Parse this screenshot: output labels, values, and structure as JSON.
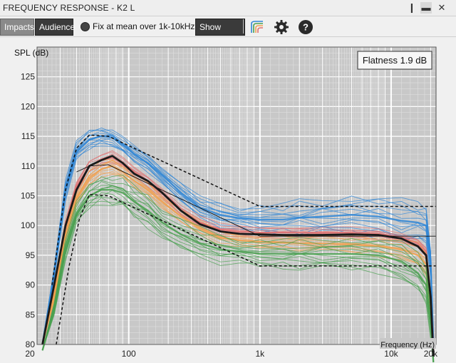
{
  "window": {
    "title": "FREQUENCY RESPONSE - K2 L"
  },
  "toolbar": {
    "impacts_label": "Impacts",
    "audience_label": "Audience",
    "fix_label": "Fix at mean over 1k-10kHz",
    "show_mean_label": "Show mean",
    "icons": [
      "curves-icon",
      "gear-icon",
      "help-icon"
    ]
  },
  "chart_data": {
    "type": "line",
    "xscale": "log",
    "xlim": [
      20,
      22000
    ],
    "ylim": [
      80,
      130
    ],
    "ylabel": "SPL (dB)",
    "xlabel": "Frequency (Hz)",
    "xtick_labels": [
      "20",
      "100",
      "1k",
      "10k",
      "20k"
    ],
    "ytick_labels": [
      "80",
      "85",
      "90",
      "95",
      "100",
      "105",
      "110",
      "115",
      "120",
      "125"
    ],
    "grid": true,
    "background": "#c8c8c8",
    "flatness_label": "Flatness 1.9 dB",
    "mean": {
      "color": "#1a1a1a",
      "x": [
        22,
        27,
        33,
        40,
        50,
        62,
        75,
        90,
        110,
        140,
        180,
        250,
        350,
        500,
        700,
        1000,
        1500,
        2000,
        3000,
        5000,
        8000,
        12000,
        16000,
        18500,
        20000,
        21000
      ],
      "y": [
        80,
        90,
        100,
        106,
        110,
        111,
        111.7,
        110.5,
        108.7,
        107.5,
        105.5,
        102.5,
        100.2,
        99,
        98.6,
        98.5,
        98.4,
        98.4,
        98.4,
        98.5,
        98.4,
        97.8,
        96.5,
        95,
        88,
        78
      ]
    },
    "target_upper": {
      "style": "dashed",
      "x": [
        26,
        33,
        40,
        50,
        70,
        1000,
        22000
      ],
      "y": [
        90,
        106,
        113,
        115.2,
        115,
        103.2,
        103.2
      ]
    },
    "target_lower": {
      "style": "dashed",
      "x": [
        28,
        35,
        42,
        50,
        70,
        1000,
        22000
      ],
      "y": [
        80,
        93,
        101,
        105.2,
        105,
        93.2,
        93.2
      ]
    },
    "target_center": {
      "x": [
        40,
        50,
        70,
        1000,
        22000
      ],
      "y": [
        109,
        110,
        110.2,
        98.2,
        98.2
      ]
    },
    "bands": [
      {
        "name": "blue",
        "color": "#2f86d6",
        "count": 14,
        "x": [
          22,
          27,
          33,
          40,
          50,
          62,
          75,
          90,
          110,
          140,
          180,
          250,
          350,
          500,
          700,
          1000,
          1500,
          2000,
          3000,
          5000,
          8000,
          12000,
          16000,
          18500,
          20000,
          21000
        ],
        "y": [
          80,
          92,
          106,
          112.5,
          114.5,
          115,
          114.8,
          113.5,
          112,
          110.5,
          108.5,
          105.5,
          103,
          101.8,
          101.2,
          101,
          101,
          101.3,
          101.5,
          101.8,
          101.5,
          100.8,
          100.5,
          100,
          94,
          80
        ],
        "spread": [
          0,
          1,
          1.5,
          1.5,
          1.6,
          1.4,
          1.3,
          1.2,
          1.3,
          1.3,
          1.4,
          1.5,
          1.6,
          1.8,
          2,
          2.2,
          2.4,
          2.6,
          2.8,
          3,
          3.2,
          3.2,
          3,
          3,
          2,
          0
        ]
      },
      {
        "name": "red",
        "color": "#e07070",
        "count": 8,
        "x": [
          22,
          27,
          33,
          40,
          50,
          62,
          75,
          90,
          110,
          140,
          180,
          250,
          350,
          500,
          700,
          1000,
          1500,
          2000,
          3000,
          5000,
          8000,
          12000,
          16000,
          18500,
          20000,
          21000
        ],
        "y": [
          80,
          89,
          100,
          106.5,
          110,
          111,
          111.5,
          110.5,
          109,
          107.5,
          105.5,
          102.5,
          100.5,
          99.3,
          99,
          98.8,
          98.8,
          98.8,
          98.8,
          98.8,
          98.6,
          98,
          97,
          95.5,
          88,
          79
        ],
        "spread": [
          0,
          0.8,
          1,
          1,
          1,
          0.9,
          0.9,
          0.8,
          0.8,
          0.8,
          0.9,
          0.9,
          0.9,
          0.9,
          0.9,
          0.9,
          0.8,
          0.8,
          0.8,
          0.8,
          0.8,
          0.8,
          0.8,
          0.8,
          0.8,
          0
        ]
      },
      {
        "name": "orange",
        "color": "#f0a050",
        "count": 10,
        "x": [
          22,
          27,
          33,
          40,
          50,
          62,
          75,
          90,
          110,
          140,
          180,
          250,
          350,
          500,
          700,
          1000,
          1500,
          2000,
          3000,
          5000,
          8000,
          12000,
          16000,
          18500,
          20000,
          21000
        ],
        "y": [
          80,
          88,
          98.5,
          104.5,
          108,
          109.5,
          110,
          109,
          107.5,
          106,
          104,
          101.5,
          99.5,
          98,
          97.5,
          97.3,
          97.2,
          97,
          97,
          96.8,
          96.5,
          96,
          95,
          93.5,
          86,
          78
        ],
        "spread": [
          0,
          0.8,
          1,
          1.1,
          1.2,
          1.2,
          1.2,
          1.1,
          1.1,
          1.1,
          1.1,
          1.1,
          1.1,
          1.1,
          1.1,
          1.1,
          1.1,
          1.1,
          1.2,
          1.3,
          1.5,
          1.6,
          1.8,
          2,
          1.5,
          0
        ]
      },
      {
        "name": "green",
        "color": "#4aa050",
        "count": 14,
        "x": [
          22,
          27,
          33,
          40,
          50,
          62,
          75,
          90,
          110,
          140,
          180,
          250,
          350,
          500,
          700,
          1000,
          1500,
          2000,
          3000,
          5000,
          8000,
          12000,
          16000,
          18500,
          20000,
          21000
        ],
        "y": [
          79,
          86,
          96,
          102,
          105,
          106,
          106,
          105.5,
          104,
          102.5,
          100.5,
          98.5,
          97,
          96,
          95.6,
          95.3,
          95.2,
          95.2,
          95.2,
          95.2,
          95,
          94,
          92,
          90,
          84,
          77
        ],
        "spread": [
          0,
          1,
          1.5,
          1.8,
          2,
          2.2,
          2.3,
          2.4,
          2.5,
          2.5,
          2.5,
          2.4,
          2.3,
          2.2,
          2.1,
          2.1,
          2.2,
          2.3,
          2.4,
          2.5,
          2.6,
          2.8,
          3,
          3.2,
          2.5,
          0
        ]
      }
    ]
  }
}
